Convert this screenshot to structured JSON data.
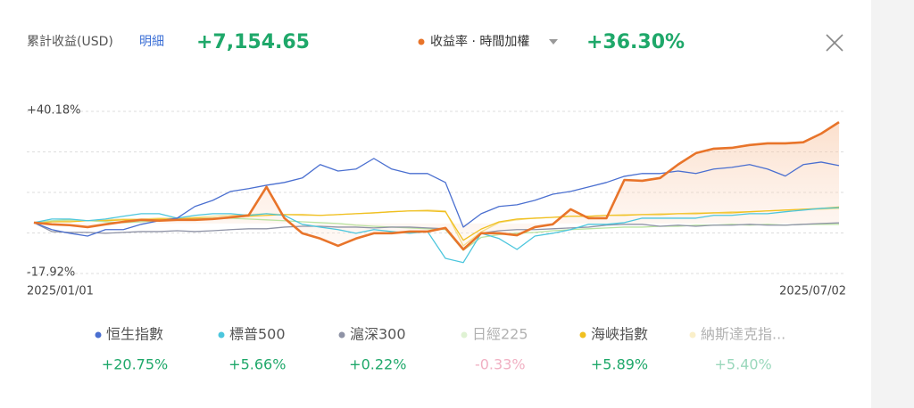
{
  "header": {
    "title": "累計收益(USD)",
    "detail": "明細",
    "amount": "+7,154.65"
  },
  "chart_data": {
    "type": "line",
    "xlim": [
      "2025/01/01",
      "2025/07/02"
    ],
    "ylim": [
      -17.92,
      40.18
    ],
    "yticks": [
      {
        "value": 40.18,
        "label": "+40.18%"
      },
      {
        "value": -17.92,
        "label": "-17.92%"
      }
    ],
    "grid": true,
    "series": [
      {
        "name": "收益率 · 時間加權",
        "color": "#e8742a",
        "value_label": "+36.30%",
        "values": [
          0.3,
          -0.3,
          -0.6,
          -1.3,
          -0.3,
          0.6,
          1.3,
          1.0,
          1.3,
          1.3,
          1.6,
          2.2,
          2.9,
          13.1,
          1.9,
          -3.5,
          -5.4,
          -8.0,
          -5.4,
          -3.5,
          -3.5,
          -2.9,
          -2.9,
          -1.6,
          -9.3,
          -3.5,
          -3.5,
          -4.2,
          -1.3,
          -0.3,
          5.1,
          1.9,
          1.9,
          15.6,
          15.3,
          16.3,
          21.1,
          25.2,
          26.8,
          27.1,
          28.1,
          28.7,
          28.7,
          29.1,
          32.2,
          36.3
        ]
      },
      {
        "name": "恒生指數",
        "color": "#4a6fd0",
        "value_label": "+20.75%",
        "values": [
          0.3,
          -2.2,
          -3.5,
          -4.5,
          -2.2,
          -2.2,
          -0.3,
          1.0,
          1.9,
          6.1,
          8.3,
          11.5,
          12.5,
          13.7,
          14.7,
          16.3,
          21.1,
          18.8,
          19.5,
          23.3,
          19.5,
          17.9,
          17.9,
          14.7,
          -1.3,
          3.5,
          6.1,
          6.7,
          8.3,
          10.5,
          11.5,
          13.1,
          14.7,
          16.9,
          17.9,
          17.9,
          18.8,
          17.9,
          19.5,
          20.1,
          21.1,
          19.5,
          17.0,
          21.1,
          22.0,
          20.75
        ]
      },
      {
        "name": "標普500",
        "color": "#4cc6dd",
        "value_label": "+5.66%",
        "values": [
          0.3,
          1.6,
          1.6,
          1.0,
          1.6,
          2.6,
          3.5,
          3.5,
          1.9,
          2.9,
          3.5,
          3.5,
          2.9,
          3.5,
          2.9,
          -0.3,
          -1.3,
          -2.2,
          -3.5,
          -2.2,
          -2.9,
          -3.5,
          -2.9,
          -12.5,
          -14.0,
          -3.5,
          -5.4,
          -9.3,
          -4.5,
          -3.5,
          -2.2,
          -0.3,
          -0.3,
          0.3,
          1.9,
          1.9,
          1.9,
          1.9,
          2.9,
          2.9,
          3.5,
          3.5,
          4.2,
          4.8,
          5.4,
          5.66
        ]
      },
      {
        "name": "滬深300",
        "color": "#8f93a6",
        "value_label": "+0.22%",
        "values": [
          0.3,
          -2.9,
          -3.2,
          -3.2,
          -3.5,
          -3.2,
          -2.9,
          -2.9,
          -2.6,
          -2.9,
          -2.6,
          -2.2,
          -1.9,
          -1.9,
          -1.3,
          -1.0,
          -1.0,
          -1.3,
          -1.3,
          -1.6,
          -1.3,
          -1.3,
          -1.6,
          -1.9,
          -9.0,
          -3.5,
          -2.6,
          -2.2,
          -2.2,
          -1.9,
          -1.6,
          -1.3,
          -0.6,
          -0.3,
          -0.3,
          -1.0,
          -0.6,
          -1.0,
          -0.6,
          -0.6,
          -0.3,
          -0.6,
          -0.6,
          -0.3,
          0.0,
          0.22
        ]
      },
      {
        "name": "日經225",
        "color": "#b9e3a0",
        "value_label": "-0.33%",
        "values": [
          0.3,
          1.0,
          1.3,
          1.0,
          0.6,
          0.3,
          0.6,
          1.0,
          1.3,
          1.6,
          1.9,
          1.9,
          1.6,
          1.3,
          1.0,
          0.6,
          0.3,
          0.0,
          -0.6,
          -1.0,
          -1.3,
          -1.6,
          -1.9,
          -2.2,
          -9.6,
          -5.0,
          -4.0,
          -3.5,
          -3.2,
          -2.6,
          -2.2,
          -1.9,
          -1.6,
          -1.3,
          -1.3,
          -1.0,
          -1.0,
          -0.6,
          -0.6,
          -0.3,
          -0.6,
          -0.3,
          -0.6,
          -0.3,
          -0.3,
          -0.33
        ]
      },
      {
        "name": "海峽指數",
        "color": "#f0c020",
        "value_label": "+5.89%",
        "values": [
          0.3,
          0.6,
          0.6,
          1.0,
          1.0,
          1.3,
          1.3,
          1.6,
          1.6,
          1.9,
          1.9,
          2.2,
          2.6,
          2.9,
          3.2,
          3.2,
          2.9,
          3.2,
          3.5,
          3.8,
          4.2,
          4.5,
          4.5,
          4.2,
          -6.0,
          -2.0,
          0.6,
          1.6,
          1.9,
          2.2,
          2.6,
          2.6,
          2.9,
          2.9,
          3.2,
          3.2,
          3.5,
          3.5,
          3.8,
          3.8,
          4.2,
          4.5,
          4.8,
          5.1,
          5.4,
          5.89
        ]
      },
      {
        "name": "納斯達克指...",
        "color": "#f6dc8a",
        "value_label": "+5.40%",
        "values": [
          0.3,
          0.6,
          1.0,
          1.0,
          1.3,
          1.6,
          1.6,
          1.9,
          1.9,
          2.2,
          2.6,
          2.9,
          3.2,
          3.5,
          3.2,
          2.9,
          2.9,
          3.2,
          3.5,
          3.8,
          4.2,
          4.5,
          4.8,
          4.5,
          -8.0,
          -3.0,
          0.3,
          1.3,
          1.9,
          2.2,
          2.6,
          2.6,
          2.9,
          3.2,
          3.2,
          3.5,
          3.5,
          3.8,
          3.8,
          4.2,
          4.2,
          4.5,
          4.8,
          5.1,
          5.1,
          5.4
        ]
      }
    ]
  }
}
